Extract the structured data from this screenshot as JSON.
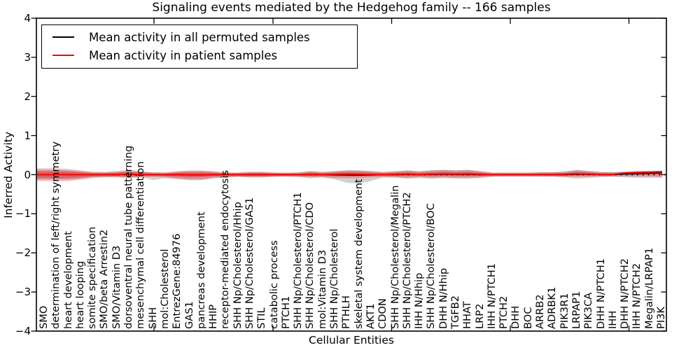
{
  "title": "Signaling events mediated by the Hedgehog family -- 166 samples",
  "axes": {
    "ylabel": "Inferred Activity",
    "xlabel": "Cellular Entities",
    "ytick_labels": [
      "4",
      "3",
      "2",
      "1",
      "0",
      "−1",
      "−2",
      "−3",
      "−4"
    ]
  },
  "legend": {
    "items": [
      {
        "label": "Mean activity in all permuted samples",
        "color": "#000000"
      },
      {
        "label": "Mean activity in patient samples",
        "color": "#ff0000"
      }
    ]
  },
  "colors": {
    "permuted_line": "#000000",
    "patient_line": "#ff0000",
    "patient_band": "rgba(225,28,34,0.30)",
    "patient_band_core": "rgba(222,24,30,0.42)",
    "permuted_band": "rgba(110,110,110,0.32)",
    "zero_line": "#000000"
  },
  "chart_data": {
    "type": "line",
    "title": "Signaling events mediated by the Hedgehog family -- 166 samples",
    "xlabel": "Cellular Entities",
    "ylabel": "Inferred Activity",
    "ylim": [
      -4,
      4
    ],
    "grid": false,
    "legend_position": "upper left",
    "zero_line": true,
    "categories": [
      "SMO",
      "determination of left/right symmetry",
      "heart development",
      "heart looping",
      "somite specification",
      "SMO/beta Arrestin2",
      "SMO/Vitamin D3",
      "dorsoventral neural tube patterning",
      "mesenchymal cell differentiation",
      "SHH",
      "mol:Cholesterol",
      "EntrezGene:84976",
      "GAS1",
      "pancreas development",
      "HHIP",
      "receptor-mediated endocytosis",
      "SHH Np/Cholesterol/Hhip",
      "SHH Np/Cholesterol/GAS1",
      "STIL",
      "catabolic process",
      "PTCH1",
      "SHH Np/Cholesterol/PTCH1",
      "SHH Np/Cholesterol/CDO",
      "mol:Vitamin D3",
      "SHH Np/Cholesterol",
      "PTHLH",
      "skeletal system development",
      "AKT1",
      "CDON",
      "SHH Np/Cholesterol/Megalin",
      "SHH Np/Cholesterol/PTCH2",
      "IHH N/Hhip",
      "SHH Np/Cholesterol/BOC",
      "DHH N/Hhip",
      "TGFB2",
      "HHAT",
      "LRP2",
      "IHH N/PTCH1",
      "PTCH2",
      "DHH",
      "BOC",
      "ARRB2",
      "ADRBK1",
      "PIK3R1",
      "LRPAP1",
      "PIK3CA",
      "DHH N/PTCH1",
      "IHH",
      "DHH N/PTCH2",
      "IHH N/PTCH2",
      "Megalin/LRPAP1",
      "PI3K"
    ],
    "series": [
      {
        "name": "Mean activity in all permuted samples",
        "color": "#000000",
        "values": [
          0,
          0,
          0,
          0,
          0,
          0,
          0,
          0.008,
          0,
          0,
          -0.005,
          0,
          -0.008,
          -0.008,
          0,
          0,
          0,
          0,
          0,
          0,
          0,
          0,
          0,
          0,
          -0.005,
          -0.01,
          -0.012,
          -0.008,
          0,
          0,
          0.005,
          0,
          0.005,
          0.008,
          0.005,
          0.008,
          0,
          0,
          0,
          0,
          0,
          0,
          0,
          0,
          0.01,
          0.008,
          0,
          0,
          0.018,
          0.027,
          0.036,
          0.045
        ]
      },
      {
        "name": "Mean activity in patient samples",
        "color": "#ff0000",
        "values": [
          0,
          -0.005,
          0,
          0,
          0,
          0,
          0.005,
          0.014,
          0.005,
          0,
          0,
          0.005,
          0,
          0,
          0.005,
          0,
          0,
          0.005,
          0.005,
          0,
          0,
          0,
          0.009,
          0,
          0.009,
          0.014,
          0.009,
          0.005,
          0,
          0.009,
          0.014,
          0.005,
          0.014,
          0.018,
          0.014,
          0.018,
          0.009,
          0,
          0,
          0,
          0,
          0.005,
          0.005,
          0.009,
          0.022,
          0.014,
          0.005,
          0.005,
          0.045,
          0.054,
          0.063,
          0.072
        ]
      },
      {
        "name": "patient samples range",
        "type": "band",
        "upper": [
          0.16,
          0.16,
          0.145,
          0.11,
          0.075,
          0.07,
          0.09,
          0.125,
          0.09,
          0.055,
          0.055,
          0.09,
          0.11,
          0.11,
          0.09,
          0.055,
          0.055,
          0.075,
          0.075,
          0.055,
          0.05,
          0.055,
          0.09,
          0.07,
          0.09,
          0.11,
          0.105,
          0.09,
          0.07,
          0.09,
          0.11,
          0.085,
          0.11,
          0.125,
          0.11,
          0.125,
          0.09,
          0.05,
          0.05,
          0.05,
          0.05,
          0.06,
          0.06,
          0.075,
          0.115,
          0.09,
          0.065,
          0.06,
          0.07,
          0.09,
          0.09,
          0.105
        ],
        "lower": [
          -0.16,
          -0.165,
          -0.165,
          -0.125,
          -0.085,
          -0.07,
          -0.07,
          -0.09,
          -0.07,
          -0.055,
          -0.07,
          -0.105,
          -0.125,
          -0.125,
          -0.09,
          -0.07,
          -0.055,
          -0.07,
          -0.07,
          -0.055,
          -0.05,
          -0.055,
          -0.07,
          -0.065,
          -0.085,
          -0.09,
          -0.09,
          -0.07,
          -0.055,
          -0.07,
          -0.085,
          -0.065,
          -0.08,
          -0.07,
          -0.08,
          -0.085,
          -0.07,
          -0.05,
          -0.045,
          -0.045,
          -0.045,
          -0.05,
          -0.05,
          -0.06,
          -0.055,
          -0.055,
          -0.05,
          -0.045,
          -0.045,
          -0.05,
          -0.05,
          -0.055
        ]
      },
      {
        "name": "permuted samples range",
        "type": "band",
        "upper": [
          0.12,
          0.12,
          0.11,
          0.085,
          0.06,
          0.055,
          0.07,
          0.09,
          0.07,
          0.06,
          0.055,
          0.07,
          0.09,
          0.09,
          0.07,
          0.05,
          0.05,
          0.06,
          0.06,
          0.05,
          0.05,
          0.055,
          0.09,
          0.065,
          0.085,
          0.115,
          0.11,
          0.09,
          0.065,
          0.075,
          0.105,
          0.085,
          0.11,
          0.12,
          0.11,
          0.12,
          0.09,
          0.055,
          0.055,
          0.055,
          0.055,
          0.065,
          0.065,
          0.08,
          0.125,
          0.095,
          0.07,
          0.065,
          0.08,
          0.095,
          0.1,
          0.1
        ],
        "lower": [
          -0.12,
          -0.125,
          -0.125,
          -0.105,
          -0.07,
          -0.06,
          -0.06,
          -0.07,
          -0.065,
          -0.14,
          -0.09,
          -0.11,
          -0.14,
          -0.14,
          -0.09,
          -0.065,
          -0.055,
          -0.065,
          -0.065,
          -0.055,
          -0.055,
          -0.06,
          -0.09,
          -0.07,
          -0.12,
          -0.205,
          -0.23,
          -0.16,
          -0.075,
          -0.075,
          -0.1,
          -0.085,
          -0.105,
          -0.085,
          -0.1,
          -0.1,
          -0.085,
          -0.055,
          -0.055,
          -0.055,
          -0.055,
          -0.055,
          -0.055,
          -0.07,
          -0.1,
          -0.085,
          -0.06,
          -0.06,
          -0.07,
          -0.08,
          -0.08,
          -0.08
        ]
      }
    ]
  }
}
